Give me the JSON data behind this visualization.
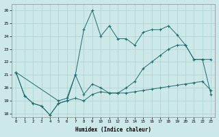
{
  "bg_color": "#cde8e8",
  "grid_color": "#b0d0d0",
  "line_color": "#1a6b6b",
  "xlabel": "Humidex (Indice chaleur)",
  "xlim": [
    -0.5,
    23.5
  ],
  "ylim": [
    17.75,
    26.5
  ],
  "xticks": [
    0,
    1,
    2,
    3,
    4,
    5,
    6,
    7,
    8,
    9,
    10,
    11,
    12,
    13,
    14,
    15,
    16,
    17,
    18,
    19,
    20,
    21,
    22,
    23
  ],
  "yticks": [
    18,
    19,
    20,
    21,
    22,
    23,
    24,
    25,
    26
  ],
  "s1_x": [
    0,
    1,
    2,
    3,
    4,
    5,
    6,
    7,
    8,
    9,
    10,
    11,
    12,
    13,
    14,
    15,
    16,
    17,
    18,
    19,
    20,
    21,
    22,
    23
  ],
  "s1_y": [
    21.2,
    19.4,
    18.8,
    18.6,
    17.9,
    18.8,
    19.0,
    19.2,
    19.0,
    19.5,
    19.7,
    19.6,
    19.6,
    19.6,
    19.7,
    19.8,
    19.9,
    20.0,
    20.1,
    20.2,
    20.3,
    20.4,
    20.5,
    19.8
  ],
  "s2_x": [
    0,
    1,
    2,
    3,
    4,
    5,
    6,
    7,
    8,
    9,
    10,
    11,
    12,
    13,
    14,
    15,
    16,
    17,
    18,
    19,
    20,
    21,
    22,
    23
  ],
  "s2_y": [
    21.2,
    19.4,
    18.8,
    18.6,
    17.9,
    18.8,
    19.0,
    21.0,
    19.5,
    20.3,
    20.0,
    19.6,
    19.6,
    20.0,
    20.5,
    21.5,
    22.0,
    22.5,
    23.0,
    23.3,
    23.3,
    22.2,
    22.2,
    19.5
  ],
  "s3_x": [
    0,
    5,
    6,
    7,
    8,
    9,
    10,
    11,
    12,
    13,
    14,
    15,
    16,
    17,
    18,
    19,
    20,
    21,
    22,
    23
  ],
  "s3_y": [
    21.2,
    19.0,
    19.2,
    21.0,
    24.5,
    26.0,
    24.0,
    24.8,
    23.8,
    23.8,
    23.3,
    24.3,
    24.5,
    24.5,
    24.8,
    24.1,
    23.3,
    22.2,
    22.2,
    22.2
  ]
}
